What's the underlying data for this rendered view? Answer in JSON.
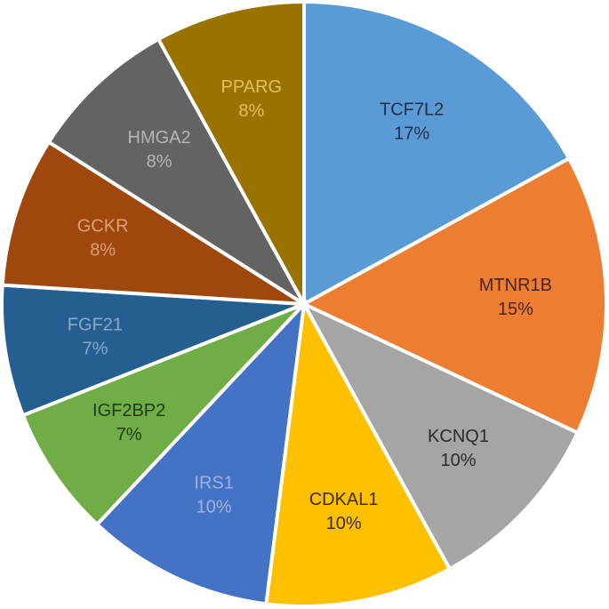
{
  "chart_data": {
    "type": "pie",
    "title": "",
    "slices": [
      {
        "label": "TCF7L2",
        "value": 17,
        "value_label": "17%",
        "color": "#5B9BD5",
        "text_color": "#1f2f4a"
      },
      {
        "label": "MTNR1B",
        "value": 15,
        "value_label": "15%",
        "color": "#ED7D31",
        "text_color": "#4a2410"
      },
      {
        "label": "KCNQ1",
        "value": 10,
        "value_label": "10%",
        "color": "#A5A5A5",
        "text_color": "#2b2b2b"
      },
      {
        "label": "CDKAL1",
        "value": 10,
        "value_label": "10%",
        "color": "#FFC000",
        "text_color": "#3d2e00"
      },
      {
        "label": "IRS1",
        "value": 10,
        "value_label": "10%",
        "color": "#4472C4",
        "text_color": "#9fb3e0"
      },
      {
        "label": "IGF2BP2",
        "value": 7,
        "value_label": "7%",
        "color": "#70AD47",
        "text_color": "#1f3a10"
      },
      {
        "label": "FGF21",
        "value": 7,
        "value_label": "7%",
        "color": "#255E91",
        "text_color": "#8aa9c9"
      },
      {
        "label": "GCKR",
        "value": 8,
        "value_label": "8%",
        "color": "#9E480E",
        "text_color": "#e0a070"
      },
      {
        "label": "HMGA2",
        "value": 8,
        "value_label": "8%",
        "color": "#636363",
        "text_color": "#b5b5b5"
      },
      {
        "label": "PPARG",
        "value": 8,
        "value_label": "8%",
        "color": "#997300",
        "text_color": "#e0c060"
      }
    ],
    "start_angle_deg": 0,
    "direction": "clockwise",
    "legend": "none",
    "data_labels": "inside"
  }
}
